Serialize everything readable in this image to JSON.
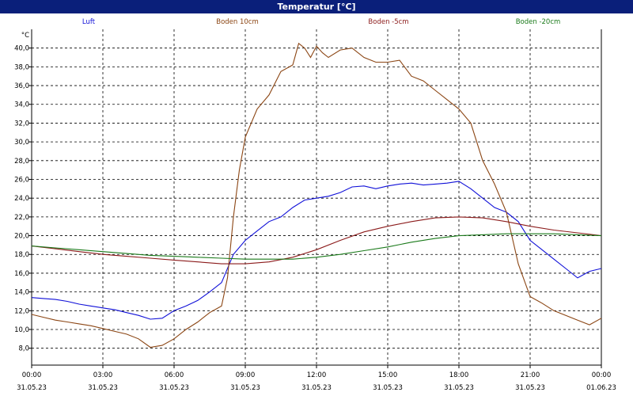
{
  "window": {
    "title": "Temperatur [°C]"
  },
  "chart_data": {
    "type": "line",
    "title": "Temperatur [°C]",
    "ylabel": "°C",
    "ylim": [
      6.2,
      42.0
    ],
    "xlim": [
      "31.05.23 00:00",
      "01.06.23 00:00"
    ],
    "grid": true,
    "legend_position": "top",
    "y_ticks": [
      "40,0",
      "38,0",
      "36,0",
      "34,0",
      "32,0",
      "30,0",
      "28,0",
      "26,0",
      "24,0",
      "22,0",
      "20,0",
      "18,0",
      "16,0",
      "14,0",
      "12,0",
      "10,0",
      "8,0"
    ],
    "x_ticks": [
      {
        "time": "00:00",
        "date": "31.05.23"
      },
      {
        "time": "03:00",
        "date": "31.05.23"
      },
      {
        "time": "06:00",
        "date": "31.05.23"
      },
      {
        "time": "09:00",
        "date": "31.05.23"
      },
      {
        "time": "12:00",
        "date": "31.05.23"
      },
      {
        "time": "15:00",
        "date": "31.05.23"
      },
      {
        "time": "18:00",
        "date": "31.05.23"
      },
      {
        "time": "21:00",
        "date": "31.05.23"
      },
      {
        "time": "00:00",
        "date": "01.06.23"
      }
    ],
    "series": [
      {
        "name": "Luft",
        "color": "#1010d8",
        "x": [
          0,
          0.5,
          1,
          1.5,
          2,
          2.5,
          3,
          3.5,
          4,
          4.5,
          5,
          5.5,
          6,
          6.5,
          7,
          7.5,
          8,
          8.5,
          9,
          9.5,
          10,
          10.5,
          11,
          11.5,
          12,
          12.5,
          13,
          13.5,
          14,
          14.5,
          15,
          15.5,
          16,
          16.5,
          17,
          17.5,
          18,
          18.5,
          19,
          19.5,
          20,
          20.5,
          21,
          21.5,
          22,
          22.5,
          23,
          23.5,
          24
        ],
        "y": [
          13.4,
          13.3,
          13.2,
          13.0,
          12.7,
          12.5,
          12.3,
          12.1,
          11.8,
          11.5,
          11.1,
          11.2,
          12.0,
          12.5,
          13.1,
          14.0,
          15.0,
          18.0,
          19.5,
          20.5,
          21.5,
          22.0,
          23.0,
          23.8,
          24.0,
          24.2,
          24.6,
          25.2,
          25.3,
          25.0,
          25.3,
          25.5,
          25.6,
          25.4,
          25.5,
          25.6,
          25.8,
          25.0,
          24.0,
          23.0,
          22.5,
          21.5,
          19.5,
          18.5,
          17.5,
          16.5,
          15.5,
          16.2,
          16.5
        ]
      },
      {
        "name": "Boden 10cm",
        "color": "#8b4513",
        "x": [
          0,
          0.5,
          1,
          1.5,
          2,
          2.5,
          3,
          3.5,
          4,
          4.5,
          5,
          5.5,
          6,
          6.5,
          7,
          7.5,
          8,
          8.25,
          8.5,
          8.75,
          9,
          9.5,
          10,
          10.5,
          11,
          11.25,
          11.5,
          11.75,
          12,
          12.25,
          12.5,
          13,
          13.5,
          14,
          14.5,
          15,
          15.5,
          16,
          16.5,
          17,
          17.5,
          18,
          18.5,
          19,
          19.5,
          20,
          20.5,
          21,
          21.5,
          22,
          22.5,
          23,
          23.5,
          24
        ],
        "y": [
          11.6,
          11.3,
          11.0,
          10.8,
          10.6,
          10.4,
          10.1,
          9.8,
          9.5,
          9.0,
          8.1,
          8.3,
          9.0,
          10.0,
          10.8,
          11.8,
          12.5,
          15.5,
          22.0,
          27.0,
          30.5,
          33.5,
          35.0,
          37.5,
          38.2,
          40.5,
          40.0,
          39.0,
          40.2,
          39.5,
          39.0,
          39.8,
          40.0,
          39.0,
          38.5,
          38.5,
          38.7,
          37.0,
          36.5,
          35.5,
          34.5,
          33.5,
          32.0,
          28.0,
          25.5,
          22.5,
          17.0,
          13.5,
          12.8,
          12.0,
          11.5,
          11.0,
          10.5,
          11.2
        ]
      },
      {
        "name": "Boden -5cm",
        "color": "#8b1a1a",
        "x": [
          0,
          1,
          2,
          3,
          4,
          5,
          6,
          7,
          8,
          9,
          10,
          11,
          12,
          13,
          14,
          15,
          16,
          17,
          18,
          19,
          20,
          21,
          22,
          23,
          24
        ],
        "y": [
          18.9,
          18.6,
          18.3,
          18.0,
          17.8,
          17.6,
          17.4,
          17.2,
          17.0,
          17.0,
          17.2,
          17.7,
          18.5,
          19.5,
          20.4,
          21.0,
          21.5,
          21.9,
          22.0,
          21.9,
          21.5,
          21.0,
          20.6,
          20.3,
          20.0
        ]
      },
      {
        "name": "Boden -20cm",
        "color": "#1a7a1a",
        "x": [
          0,
          1,
          2,
          3,
          4,
          5,
          6,
          7,
          8,
          9,
          10,
          11,
          12,
          13,
          14,
          15,
          16,
          17,
          18,
          19,
          20,
          21,
          22,
          23,
          24
        ],
        "y": [
          18.9,
          18.7,
          18.5,
          18.3,
          18.1,
          17.9,
          17.8,
          17.7,
          17.6,
          17.5,
          17.5,
          17.5,
          17.7,
          18.0,
          18.4,
          18.8,
          19.3,
          19.7,
          20.0,
          20.1,
          20.2,
          20.2,
          20.2,
          20.1,
          20.0
        ]
      }
    ]
  }
}
